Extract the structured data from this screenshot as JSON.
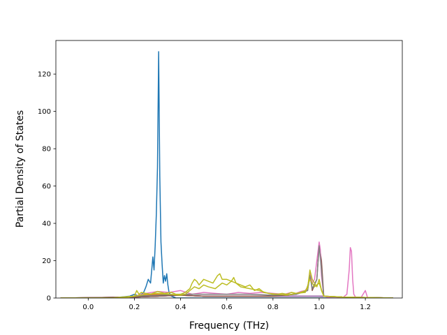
{
  "chart_data": {
    "type": "line",
    "xlabel": "Frequency (THz)",
    "ylabel": "Partial Density of States",
    "xlim": [
      -0.14,
      1.36
    ],
    "ylim": [
      0,
      138
    ],
    "x_ticks": [
      0.0,
      0.2,
      0.4,
      0.6,
      0.8,
      1.0,
      1.2
    ],
    "x_tick_labels": [
      "0.0",
      "0.2",
      "0.4",
      "0.6",
      "0.8",
      "1.0",
      "1.2"
    ],
    "y_ticks": [
      0,
      20,
      40,
      60,
      80,
      100,
      120
    ],
    "y_tick_labels": [
      "0",
      "20",
      "40",
      "60",
      "80",
      "100",
      "120"
    ],
    "grid": false,
    "series": [
      {
        "color": "#1f77b4",
        "x": [
          -0.12,
          0.1,
          0.18,
          0.2,
          0.22,
          0.24,
          0.25,
          0.26,
          0.27,
          0.28,
          0.285,
          0.29,
          0.295,
          0.3,
          0.305,
          0.31,
          0.315,
          0.32,
          0.325,
          0.33,
          0.335,
          0.34,
          0.345,
          0.35,
          0.36,
          0.38,
          0.42,
          0.5,
          0.9,
          1.32
        ],
        "y": [
          0,
          0,
          1,
          2,
          1,
          3,
          6,
          10,
          8,
          22,
          15,
          28,
          45,
          70,
          132,
          65,
          30,
          18,
          8,
          12,
          9,
          13,
          7,
          3,
          1,
          0,
          0,
          0,
          0,
          0
        ]
      },
      {
        "color": "#ff7f0e",
        "x": [
          -0.12,
          0.15,
          0.2,
          0.25,
          0.3,
          0.35,
          0.4,
          0.5,
          0.6,
          0.7,
          0.8,
          0.9,
          1.0,
          1.1,
          1.2,
          1.32
        ],
        "y": [
          0,
          0,
          1,
          1.5,
          2,
          2,
          1.5,
          1,
          1,
          1,
          1,
          1,
          1,
          0.5,
          0.3,
          0
        ]
      },
      {
        "color": "#2ca02c",
        "x": [
          -0.12,
          0.2,
          0.3,
          0.4,
          0.5,
          0.6,
          0.7,
          0.8,
          0.9,
          1.0,
          1.1,
          1.2,
          1.32
        ],
        "y": [
          0,
          0.5,
          1,
          1.5,
          1,
          1,
          1,
          1,
          1,
          1,
          0.5,
          0.3,
          0
        ]
      },
      {
        "color": "#d62728",
        "x": [
          -0.12,
          0.2,
          0.3,
          0.4,
          0.5,
          0.6,
          0.7,
          0.8,
          0.9,
          1.0,
          1.1,
          1.2,
          1.32
        ],
        "y": [
          0,
          0.5,
          1,
          1.5,
          1,
          1,
          1,
          1,
          1,
          1,
          0.5,
          0.3,
          0
        ]
      },
      {
        "color": "#9467bd",
        "x": [
          -0.12,
          0.2,
          0.3,
          0.4,
          0.5,
          0.6,
          0.7,
          0.8,
          0.9,
          1.0,
          1.1,
          1.2,
          1.32
        ],
        "y": [
          0,
          0.5,
          1,
          1.5,
          1,
          1,
          1,
          1,
          1,
          1,
          0.5,
          0.3,
          0
        ]
      },
      {
        "color": "#8c564b",
        "x": [
          -0.12,
          0.2,
          0.3,
          0.4,
          0.5,
          0.6,
          0.7,
          0.8,
          0.9,
          0.95,
          0.96,
          0.97,
          0.99,
          1.0,
          1.01,
          1.02,
          1.1,
          1.2,
          1.32
        ],
        "y": [
          0,
          0.5,
          1,
          1.5,
          1,
          1,
          1,
          1,
          2,
          4,
          14,
          4,
          10,
          29,
          20,
          1,
          0.5,
          0.3,
          0
        ]
      },
      {
        "color": "#e377c2",
        "x": [
          -0.12,
          0.1,
          0.2,
          0.25,
          0.3,
          0.35,
          0.4,
          0.45,
          0.5,
          0.55,
          0.6,
          0.65,
          0.7,
          0.75,
          0.8,
          0.85,
          0.88,
          0.9,
          0.92,
          0.94,
          0.95,
          0.96,
          0.97,
          0.98,
          0.99,
          1.0,
          1.005,
          1.01,
          1.02,
          1.05,
          1.1,
          1.12,
          1.13,
          1.135,
          1.14,
          1.145,
          1.15,
          1.16,
          1.18,
          1.19,
          1.2,
          1.21,
          1.32
        ],
        "y": [
          0,
          0,
          1,
          2.5,
          3.5,
          3,
          4,
          2,
          3,
          2.5,
          2,
          3,
          2.5,
          3,
          2.5,
          2,
          3,
          2.5,
          3.5,
          4,
          6,
          13,
          8,
          10,
          20,
          30,
          26,
          12,
          1,
          0,
          0,
          2,
          15,
          27,
          25,
          10,
          2,
          0,
          0,
          2,
          4,
          0,
          0
        ]
      },
      {
        "color": "#7f7f7f",
        "x": [
          -0.12,
          0.1,
          0.2,
          0.3,
          0.4,
          0.5,
          0.6,
          0.7,
          0.8,
          0.9,
          0.95,
          0.96,
          0.97,
          0.99,
          1.0,
          1.01,
          1.02,
          1.1,
          1.2,
          1.32
        ],
        "y": [
          0,
          0,
          1,
          1.5,
          2,
          2,
          2,
          2,
          1.5,
          2,
          4,
          12,
          5,
          10,
          28,
          15,
          1,
          0.5,
          0.3,
          0
        ]
      },
      {
        "color": "#bcbd22",
        "x": [
          -0.12,
          0.1,
          0.15,
          0.2,
          0.21,
          0.22,
          0.23,
          0.25,
          0.27,
          0.3,
          0.33,
          0.36,
          0.38,
          0.4,
          0.42,
          0.44,
          0.45,
          0.46,
          0.47,
          0.48,
          0.5,
          0.52,
          0.54,
          0.56,
          0.57,
          0.58,
          0.6,
          0.62,
          0.63,
          0.64,
          0.66,
          0.68,
          0.7,
          0.72,
          0.74,
          0.76,
          0.78,
          0.8,
          0.82,
          0.84,
          0.86,
          0.88,
          0.9,
          0.92,
          0.94,
          0.95,
          0.96,
          0.97,
          0.98,
          0.99,
          1.0,
          1.01,
          1.02,
          1.1,
          1.2,
          1.32
        ],
        "y": [
          0,
          0,
          0.5,
          1,
          4,
          2,
          3,
          2.5,
          2,
          3.5,
          2.5,
          3,
          2,
          2,
          3,
          5,
          8,
          10,
          9,
          7,
          10,
          9,
          8,
          12,
          13,
          10,
          10,
          9,
          11,
          8,
          7,
          6,
          7,
          4,
          5,
          3,
          2.5,
          2,
          2,
          2.5,
          2,
          3,
          2.5,
          3,
          4,
          5,
          15,
          10,
          8,
          6,
          10,
          4,
          1,
          0.5,
          0.3,
          0
        ]
      },
      {
        "color": "#bcbd22",
        "x": [
          -0.12,
          0.15,
          0.2,
          0.25,
          0.3,
          0.35,
          0.4,
          0.42,
          0.44,
          0.46,
          0.48,
          0.5,
          0.52,
          0.55,
          0.58,
          0.6,
          0.62,
          0.64,
          0.66,
          0.7,
          0.74,
          0.78,
          0.82,
          0.86,
          0.9,
          0.94,
          0.96,
          0.98,
          1.0,
          1.02,
          1.1,
          1.32
        ],
        "y": [
          0,
          0,
          1,
          2,
          2.5,
          2,
          1.5,
          2,
          4,
          6,
          5,
          7,
          6,
          5,
          8,
          7,
          9,
          8,
          6,
          5,
          4,
          2.5,
          2,
          1.5,
          2.5,
          3,
          10,
          6,
          8,
          1,
          0.5,
          0
        ]
      }
    ]
  }
}
